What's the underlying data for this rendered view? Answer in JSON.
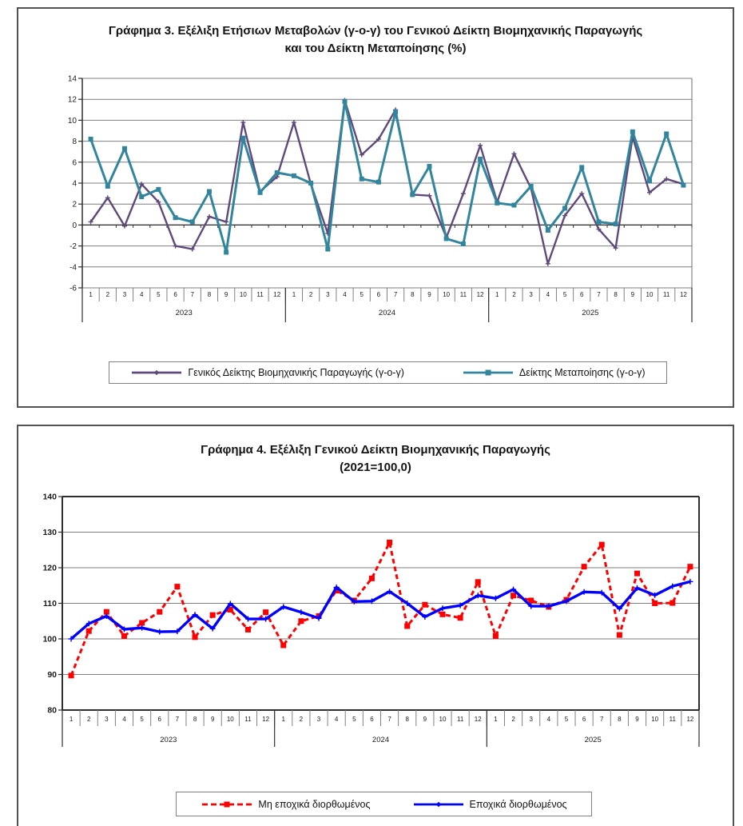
{
  "page": {
    "background": "#ffffff"
  },
  "chart_data": [
    {
      "name": "chart-3",
      "type": "line",
      "title_line1": "Γράφημα 3. Εξέλιξη Ετήσιων Μεταβολών (γ-ο-γ) του Γενικού Δείκτη Βιομηχανικής Παραγωγής",
      "title_line2": "και του Δείκτη Μεταποίησης (%)",
      "ylim": [
        -6,
        14
      ],
      "ytick_step": 2,
      "ytick_labels": [
        "14",
        "12",
        "10",
        "8",
        "6",
        "4",
        "2",
        "0",
        "-2",
        "-4",
        "-6"
      ],
      "month_labels": [
        "1",
        "2",
        "3",
        "4",
        "5",
        "6",
        "7",
        "8",
        "9",
        "10",
        "11",
        "12"
      ],
      "years": [
        "2023",
        "2024",
        "2025"
      ],
      "grid": "horizontal",
      "legend_position": "bottom",
      "series": [
        {
          "name": "Γενικός Δείκτης Βιομηχανικής Παραγωγής (γ-ο-γ)",
          "color": "#5F497A",
          "marker": "plus",
          "line": "solid",
          "values": [
            0.3,
            2.6,
            -0.1,
            3.9,
            2.2,
            -2.0,
            -2.3,
            0.8,
            0.3,
            9.8,
            3.2,
            4.6,
            9.8,
            3.9,
            -0.8,
            11.9,
            6.7,
            8.2,
            11.0,
            2.9,
            2.8,
            -1.2,
            3.0,
            7.6,
            2.2,
            6.8,
            3.5,
            -3.7,
            0.9,
            3.0,
            -0.4,
            -2.2,
            8.4,
            3.1,
            4.4,
            3.9
          ]
        },
        {
          "name": "Δείκτης Μεταποίησης (γ-ο-γ)",
          "color": "#31859C",
          "marker": "square",
          "line": "solid",
          "values": [
            8.2,
            3.7,
            7.3,
            2.7,
            3.4,
            0.7,
            0.3,
            3.2,
            -2.6,
            8.3,
            3.1,
            5.0,
            4.7,
            4.0,
            -2.3,
            11.8,
            4.4,
            4.1,
            10.8,
            2.9,
            5.6,
            -1.3,
            -1.8,
            6.3,
            2.1,
            1.9,
            3.7,
            -0.5,
            1.6,
            5.5,
            0.3,
            0.1,
            8.9,
            4.2,
            8.7,
            3.8
          ]
        }
      ]
    },
    {
      "name": "chart-4",
      "type": "line",
      "title_line1": "Γράφημα 4. Εξέλιξη Γενικού Δείκτη Βιομηχανικής Παραγωγής",
      "title_line2": "(2021=100,0)",
      "ylim": [
        80,
        140
      ],
      "ytick_step": 10,
      "ytick_labels": [
        "140",
        "130",
        "120",
        "110",
        "100",
        "90",
        "80"
      ],
      "month_labels": [
        "1",
        "2",
        "3",
        "4",
        "5",
        "6",
        "7",
        "8",
        "9",
        "10",
        "11",
        "12"
      ],
      "years": [
        "2023",
        "2024",
        "2025"
      ],
      "grid": "horizontal",
      "legend_position": "bottom",
      "series": [
        {
          "name": "Μη εποχικά διορθωμένος",
          "color": "#FF0000",
          "marker": "square",
          "line": "dashed",
          "values": [
            89.7,
            102.2,
            107.6,
            100.8,
            104.5,
            107.6,
            114.7,
            100.5,
            106.7,
            108.2,
            102.6,
            107.5,
            98.2,
            105.0,
            106.4,
            113.6,
            110.8,
            117.0,
            127.1,
            103.6,
            109.6,
            106.9,
            105.9,
            116.0,
            100.8,
            112.2,
            110.8,
            109.0,
            111.0,
            120.3,
            126.5,
            101.1,
            118.4,
            110.0,
            110.1,
            120.3
          ]
        },
        {
          "name": "Εποχικά διορθωμένος",
          "color": "#0000FF",
          "marker": "plus",
          "line": "solid",
          "values": [
            100.0,
            104.3,
            106.4,
            102.7,
            103.1,
            102.0,
            102.1,
            106.8,
            102.9,
            109.9,
            105.6,
            105.6,
            109.0,
            107.5,
            105.8,
            114.5,
            110.5,
            110.6,
            113.3,
            110.0,
            106.2,
            108.6,
            109.4,
            112.2,
            111.4,
            113.9,
            109.2,
            109.2,
            110.6,
            113.2,
            113.0,
            108.5,
            114.3,
            112.3,
            114.8,
            116.1
          ]
        }
      ]
    }
  ]
}
